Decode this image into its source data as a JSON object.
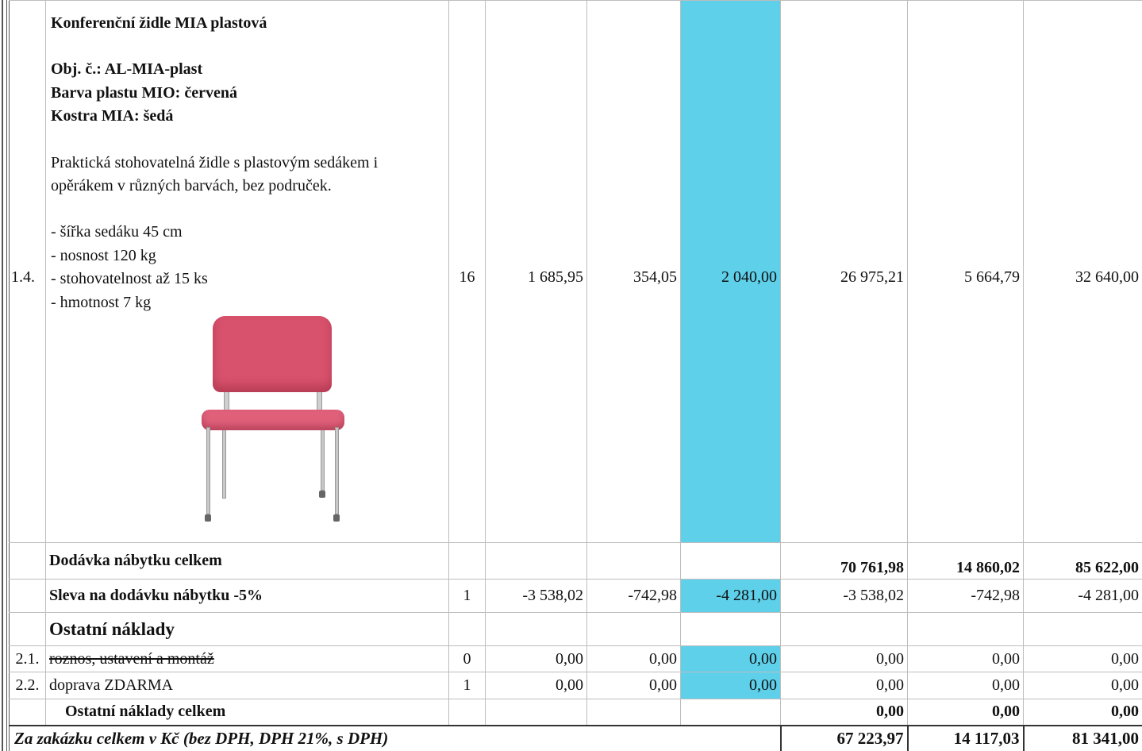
{
  "item": {
    "index": "1.4.",
    "title": "Konferenční židle MIA plastová",
    "specs": [
      "Obj. č.: AL-MIA-plast",
      "Barva plastu MIO: červená",
      "Kostra MIA: šedá"
    ],
    "description": [
      "Praktická stohovatelná židle s plastovým sedákem i",
      "opěrákem v různých barvách, bez područek."
    ],
    "features": [
      "- šířka sedáku 45 cm",
      "- nosnost 120 kg",
      "- stohovatelnost až 15 ks",
      "- hmotnost 7 kg"
    ],
    "qty": "16",
    "unit_no_vat": "1 685,95",
    "unit_vat": "354,05",
    "unit_total": "2 040,00",
    "sum_no_vat": "26 975,21",
    "sum_vat": "5 664,79",
    "sum_total": "32 640,00",
    "image": "chair-photo"
  },
  "subtotal": {
    "label": "Dodávka nábytku celkem",
    "no_vat": "70 761,98",
    "vat": "14 860,02",
    "total": "85 622,00"
  },
  "discount": {
    "label": "Sleva na dodávku nábytku -5%",
    "qty": "1",
    "unit_no_vat": "-3 538,02",
    "unit_vat": "-742,98",
    "unit_total": "-4 281,00",
    "sum_no_vat": "-3 538,02",
    "sum_vat": "-742,98",
    "sum_total": "-4 281,00"
  },
  "other_section": {
    "label": "Ostatní náklady"
  },
  "other_items": [
    {
      "index": "2.1.",
      "label": "roznos, ustavení a montáž",
      "qty": "0",
      "unit_no_vat": "0,00",
      "unit_vat": "0,00",
      "unit_total": "0,00",
      "sum_no_vat": "0,00",
      "sum_vat": "0,00",
      "sum_total": "0,00"
    },
    {
      "index": "2.2.",
      "label": "doprava ZDARMA",
      "qty": "1",
      "unit_no_vat": "0,00",
      "unit_vat": "0,00",
      "unit_total": "0,00",
      "sum_no_vat": "0,00",
      "sum_vat": "0,00",
      "sum_total": "0,00"
    }
  ],
  "other_total": {
    "label": "Ostatní náklady celkem",
    "no_vat": "0,00",
    "vat": "0,00",
    "total": "0,00"
  },
  "grand_total": {
    "label": "Za zakázku celkem v Kč (bez DPH, DPH 21%, s DPH)",
    "no_vat": "67 223,97",
    "vat": "14 117,03",
    "total": "81 341,00"
  },
  "colors": {
    "highlight": "#5ed0ea",
    "chair": "#d9526d"
  }
}
